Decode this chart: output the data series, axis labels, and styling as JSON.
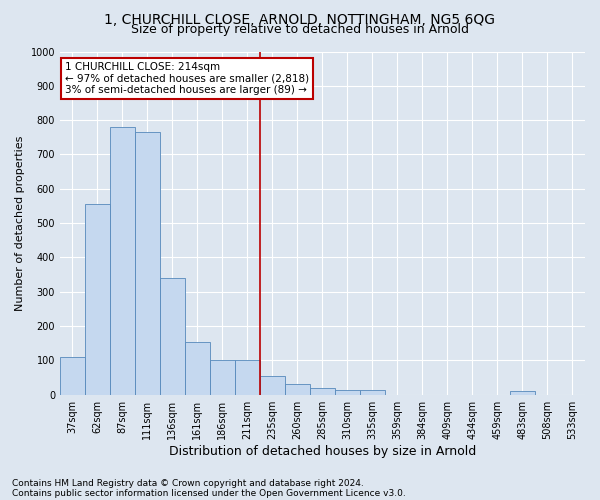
{
  "title_line1": "1, CHURCHILL CLOSE, ARNOLD, NOTTINGHAM, NG5 6QG",
  "title_line2": "Size of property relative to detached houses in Arnold",
  "xlabel": "Distribution of detached houses by size in Arnold",
  "ylabel": "Number of detached properties",
  "footer_line1": "Contains HM Land Registry data © Crown copyright and database right 2024.",
  "footer_line2": "Contains public sector information licensed under the Open Government Licence v3.0.",
  "categories": [
    "37sqm",
    "62sqm",
    "87sqm",
    "111sqm",
    "136sqm",
    "161sqm",
    "186sqm",
    "211sqm",
    "235sqm",
    "260sqm",
    "285sqm",
    "310sqm",
    "335sqm",
    "359sqm",
    "384sqm",
    "409sqm",
    "434sqm",
    "459sqm",
    "483sqm",
    "508sqm",
    "533sqm"
  ],
  "values": [
    110,
    555,
    780,
    765,
    340,
    155,
    100,
    100,
    55,
    30,
    20,
    15,
    15,
    0,
    0,
    0,
    0,
    0,
    10,
    0,
    0
  ],
  "bar_color": "#c5d8ef",
  "bar_edge_color": "#5588bb",
  "vline_color": "#bb0000",
  "annotation_text": "1 CHURCHILL CLOSE: 214sqm\n← 97% of detached houses are smaller (2,818)\n3% of semi-detached houses are larger (89) →",
  "annotation_box_facecolor": "#ffffff",
  "annotation_box_edgecolor": "#bb0000",
  "ylim": [
    0,
    1000
  ],
  "yticks": [
    0,
    100,
    200,
    300,
    400,
    500,
    600,
    700,
    800,
    900,
    1000
  ],
  "background_color": "#dde6f0",
  "grid_color": "#ffffff",
  "title_fontsize": 10,
  "subtitle_fontsize": 9,
  "ylabel_fontsize": 8,
  "xlabel_fontsize": 9,
  "tick_fontsize": 7,
  "footer_fontsize": 6.5,
  "annot_fontsize": 7.5
}
